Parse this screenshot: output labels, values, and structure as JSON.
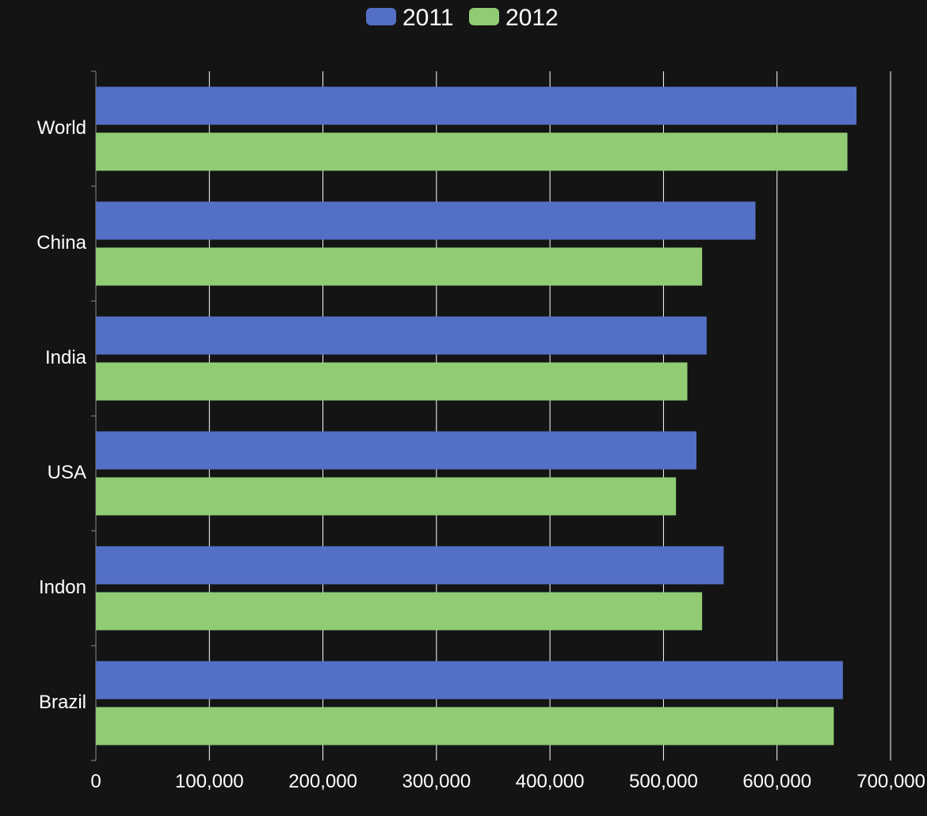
{
  "chart_data": {
    "type": "bar",
    "orientation": "horizontal",
    "categories": [
      "World",
      "China",
      "India",
      "USA",
      "Indon",
      "Brazil"
    ],
    "series": [
      {
        "name": "2011",
        "color": "#5470c6",
        "values": [
          670000,
          581000,
          538000,
          529000,
          553000,
          658000
        ]
      },
      {
        "name": "2012",
        "color": "#91cc75",
        "values": [
          662000,
          534000,
          521000,
          511000,
          534000,
          650000
        ]
      }
    ],
    "xlim": [
      0,
      700000
    ],
    "xticks": [
      0,
      100000,
      200000,
      300000,
      400000,
      500000,
      600000,
      700000
    ],
    "xtick_labels": [
      "0",
      "100,000",
      "200,000",
      "300,000",
      "400,000",
      "500,000",
      "600,000",
      "700,000"
    ],
    "grid": true,
    "legend_position": "top-center",
    "title": "",
    "xlabel": "",
    "ylabel": ""
  },
  "colors": {
    "background": "#141414",
    "text": "#ffffff",
    "gridline": "#ffffff"
  }
}
